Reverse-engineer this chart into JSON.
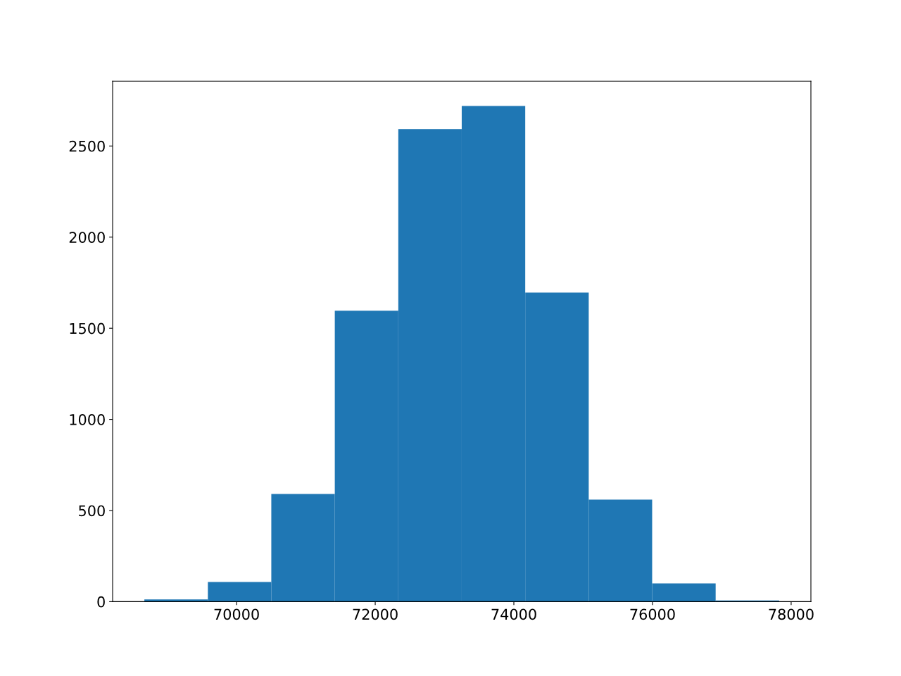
{
  "chart_data": {
    "type": "histogram",
    "color": "#1f77b4",
    "bins": [
      68670,
      69586,
      70501,
      71417,
      72333,
      73248,
      74164,
      75080,
      75995,
      76911,
      77827
    ],
    "values": [
      12,
      108,
      591,
      1596,
      2593,
      2720,
      1696,
      560,
      100,
      6
    ],
    "xlim": [
      68212,
      78285
    ],
    "xticks": [
      70000,
      72000,
      74000,
      76000,
      78000
    ],
    "ylim": [
      0,
      2856
    ],
    "yticks": [
      0,
      500,
      1000,
      1500,
      2000,
      2500
    ],
    "grid": false,
    "legend": false
  }
}
